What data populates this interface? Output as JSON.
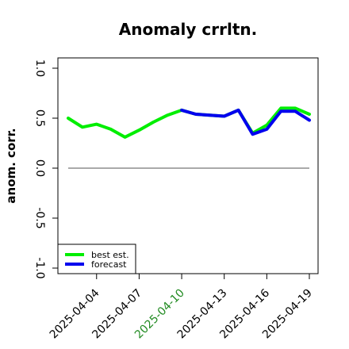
{
  "chart_data": {
    "type": "line",
    "title": "Anomaly crrltn.",
    "xlabel": "",
    "ylabel": "anom. corr.",
    "x": [
      "2025-04-02",
      "2025-04-03",
      "2025-04-04",
      "2025-04-05",
      "2025-04-06",
      "2025-04-07",
      "2025-04-08",
      "2025-04-09",
      "2025-04-10",
      "2025-04-11",
      "2025-04-12",
      "2025-04-13",
      "2025-04-14",
      "2025-04-15",
      "2025-04-16",
      "2025-04-17",
      "2025-04-18",
      "2025-04-19"
    ],
    "x_tick_labels": [
      {
        "label": "2025-04-04",
        "color": "#000000",
        "index": 2
      },
      {
        "label": "2025-04-07",
        "color": "#000000",
        "index": 5
      },
      {
        "label": "2025-04-10",
        "color": "#228B22",
        "index": 8
      },
      {
        "label": "2025-04-13",
        "color": "#000000",
        "index": 11
      },
      {
        "label": "2025-04-16",
        "color": "#000000",
        "index": 14
      },
      {
        "label": "2025-04-19",
        "color": "#000000",
        "index": 17
      }
    ],
    "ylim": [
      -1.0,
      1.0
    ],
    "y_ticks": [
      "-1.0",
      "-0.5",
      "0.0",
      "0.5",
      "1.0"
    ],
    "reference_line": 0,
    "series": [
      {
        "name": "best est.",
        "color": "#00ee00",
        "values": [
          0.5,
          0.41,
          0.44,
          0.39,
          0.31,
          0.38,
          0.46,
          0.53,
          0.58,
          0.54,
          0.53,
          0.52,
          0.58,
          0.35,
          0.43,
          0.6,
          0.6,
          0.54
        ]
      },
      {
        "name": "forecast",
        "color": "#0000ee",
        "values": [
          null,
          null,
          null,
          null,
          null,
          null,
          null,
          null,
          0.58,
          0.54,
          0.53,
          0.52,
          0.58,
          0.34,
          0.39,
          0.57,
          0.57,
          0.48
        ]
      }
    ],
    "legend_position": "bottom-left",
    "grid": false
  }
}
